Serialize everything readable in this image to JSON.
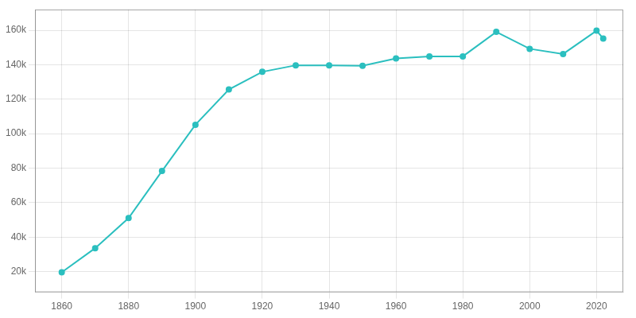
{
  "chart_data": {
    "type": "line",
    "x": [
      1860,
      1870,
      1880,
      1890,
      1900,
      1910,
      1920,
      1930,
      1940,
      1950,
      1960,
      1970,
      1980,
      1990,
      2000,
      2010,
      2020,
      2022
    ],
    "values": [
      19586,
      33579,
      51031,
      78347,
      105171,
      125600,
      135875,
      139656,
      139656,
      139336,
      143663,
      144824,
      144824,
      159031,
      149222,
      146199,
      159732,
      155221
    ],
    "color": "#2bbfbf",
    "marker": "circle",
    "xlim": [
      1852,
      2028
    ],
    "xticks": [
      1860,
      1880,
      1900,
      1920,
      1940,
      1960,
      1980,
      2000,
      2020
    ],
    "ylim": [
      8000,
      172000
    ],
    "yticks": [
      {
        "value": 20000,
        "label": "20k"
      },
      {
        "value": 40000,
        "label": "40k"
      },
      {
        "value": 60000,
        "label": "60k"
      },
      {
        "value": 80000,
        "label": "80k"
      },
      {
        "value": 100000,
        "label": "100k"
      },
      {
        "value": 120000,
        "label": "120k"
      },
      {
        "value": 140000,
        "label": "140k"
      },
      {
        "value": 160000,
        "label": "160k"
      }
    ],
    "grid": true
  }
}
